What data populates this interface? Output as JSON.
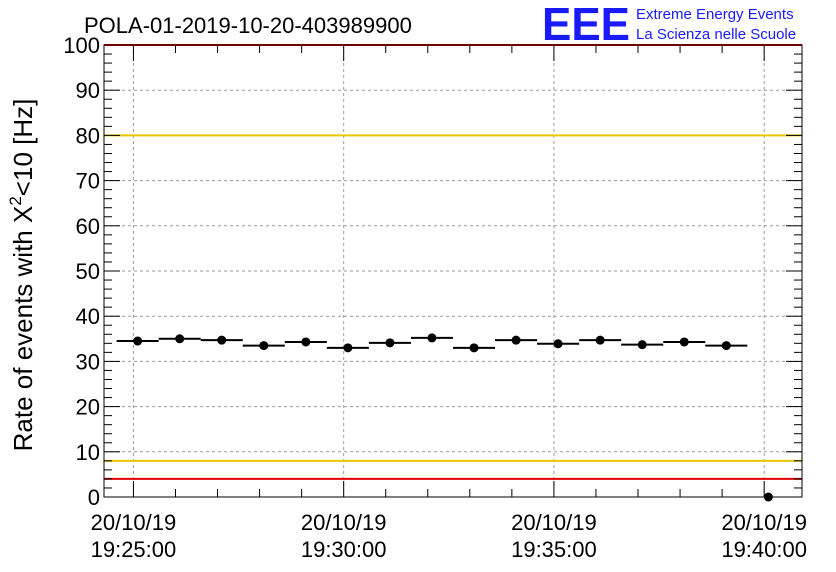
{
  "chart_data": {
    "type": "scatter",
    "title": "POLA-01-2019-10-20-403989900",
    "ylabel": "Rate of events with X²<10 [Hz]",
    "ylabel_parts": {
      "pre": "Rate of events with X",
      "sup": "2",
      "post": "<10 [Hz]"
    },
    "xlabel": "",
    "ylim": [
      0,
      100
    ],
    "yticks": [
      0,
      10,
      20,
      30,
      40,
      50,
      60,
      70,
      80,
      90,
      100
    ],
    "xlim_minutes": [
      -0.7,
      15.9
    ],
    "xticks": [
      {
        "minute": 0,
        "date": "20/10/19",
        "time": "19:25:00"
      },
      {
        "minute": 5,
        "date": "20/10/19",
        "time": "19:30:00"
      },
      {
        "minute": 10,
        "date": "20/10/19",
        "time": "19:35:00"
      },
      {
        "minute": 15,
        "date": "20/10/19",
        "time": "19:40:00"
      }
    ],
    "bin_width_minutes": 1,
    "series": [
      {
        "name": "rate",
        "x_minutes": [
          0.1,
          1.1,
          2.1,
          3.1,
          4.1,
          5.1,
          6.1,
          7.1,
          8.1,
          9.1,
          10.1,
          11.1,
          12.1,
          13.1,
          14.1,
          15.1
        ],
        "values": [
          34.5,
          35.0,
          34.7,
          33.5,
          34.3,
          33.0,
          34.1,
          35.2,
          33.0,
          34.7,
          33.9,
          34.7,
          33.7,
          34.3,
          33.5,
          0.0
        ],
        "has_bar": [
          true,
          true,
          true,
          true,
          true,
          true,
          true,
          true,
          true,
          true,
          true,
          true,
          true,
          true,
          true,
          false
        ]
      }
    ],
    "reference_lines": [
      {
        "y": 80,
        "color": "#e8c800"
      },
      {
        "y": 8,
        "color": "#e8c800"
      },
      {
        "y": 4,
        "color": "#e00000"
      },
      {
        "y": 100,
        "color": "#e00000"
      }
    ],
    "grid": true
  },
  "logo": {
    "text": "EEE",
    "line1": "Extreme Energy Events",
    "line2": "La Scienza nelle Scuole",
    "color": "#1a1aff"
  }
}
